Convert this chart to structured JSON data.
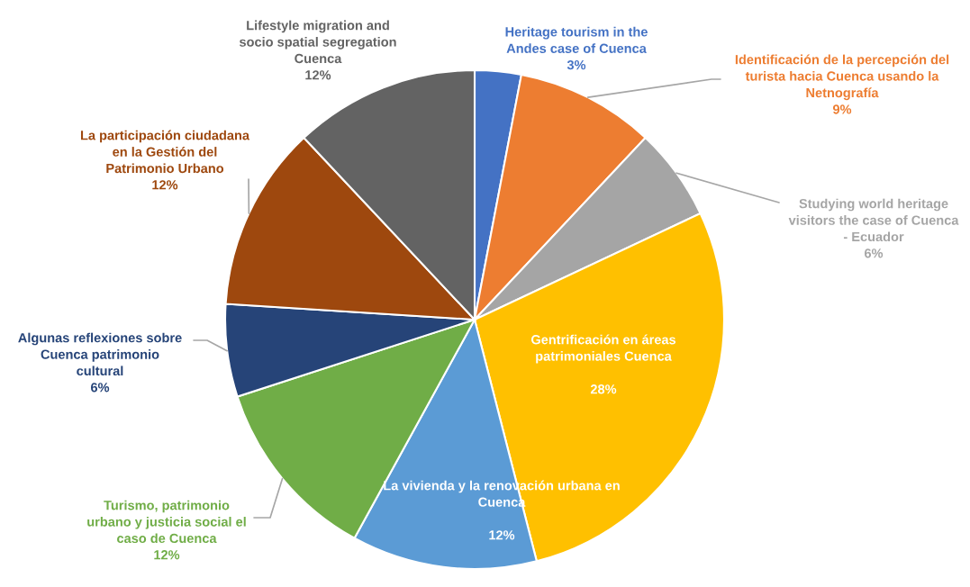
{
  "chart_data": {
    "type": "pie",
    "categories": [
      "Heritage tourism in the\nAndes case of Cuenca",
      "Identificación de la percepción del\nturista hacia Cuenca usando la\nNetnografía",
      "Studying world heritage\nvisitors the case of Cuenca\n- Ecuador",
      "Gentrificación en áreas\npatrimoniales Cuenca",
      "La vivienda y la renovación urbana en\nCuenca",
      "Turismo, patrimonio\nurbano y justicia social el\ncaso de Cuenca",
      "Algunas reflexiones sobre\nCuenca patrimonio\ncultural",
      "La participación ciudadana\nen la Gestión del\nPatrimonio Urbano",
      "Lifestyle migration and\nsocio spatial segregation\nCuenca"
    ],
    "values": [
      3,
      9,
      6,
      28,
      12,
      12,
      6,
      12,
      12
    ],
    "value_labels": [
      "3%",
      "9%",
      "6%",
      "28%",
      "12%",
      "12%",
      "6%",
      "12%",
      "12%"
    ],
    "colors": [
      "#4472c4",
      "#ed7d31",
      "#a5a5a5",
      "#ffc000",
      "#5b9bd5",
      "#70ad47",
      "#264478",
      "#9e480e",
      "#636363"
    ],
    "legend": false
  }
}
